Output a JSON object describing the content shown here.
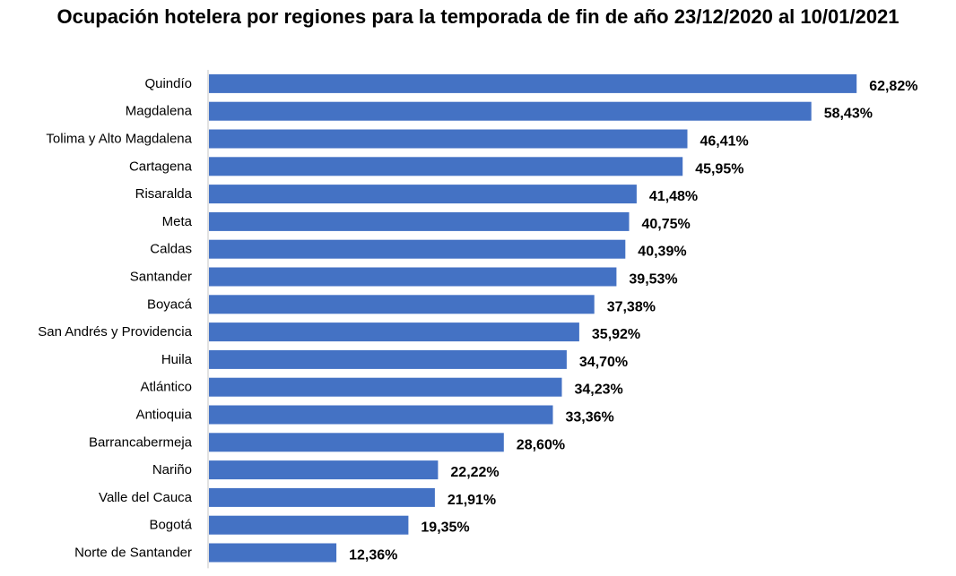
{
  "chart_data": {
    "type": "bar",
    "orientation": "horizontal",
    "title": "Ocupación hotelera por regiones para la temporada de fin de año 23/12/2020 al 10/01/2021",
    "xlabel": "",
    "ylabel": "",
    "bar_color": "#4472C4",
    "grid": false,
    "legend": "none",
    "xlim": [
      0,
      63.5
    ],
    "categories": [
      "Quindío",
      "Magdalena",
      "Tolima y Alto Magdalena",
      "Cartagena",
      "Risaralda",
      "Meta",
      "Caldas",
      "Santander",
      "Boyacá",
      "San Andrés y Providencia",
      "Huila",
      "Atlántico",
      "Antioquia",
      "Barrancabermeja",
      "Nariño",
      "Valle del Cauca",
      "Bogotá",
      "Norte de Santander"
    ],
    "values": [
      62.82,
      58.43,
      46.41,
      45.95,
      41.48,
      40.75,
      40.39,
      39.53,
      37.38,
      35.92,
      34.7,
      34.23,
      33.36,
      28.6,
      22.22,
      21.91,
      19.35,
      12.36
    ],
    "value_labels": [
      "62,82%",
      "58,43%",
      "46,41%",
      "45,95%",
      "41,48%",
      "40,75%",
      "40,39%",
      "39,53%",
      "37,38%",
      "35,92%",
      "34,70%",
      "34,23%",
      "33,36%",
      "28,60%",
      "22,22%",
      "21,91%",
      "19,35%",
      "12,36%"
    ]
  }
}
